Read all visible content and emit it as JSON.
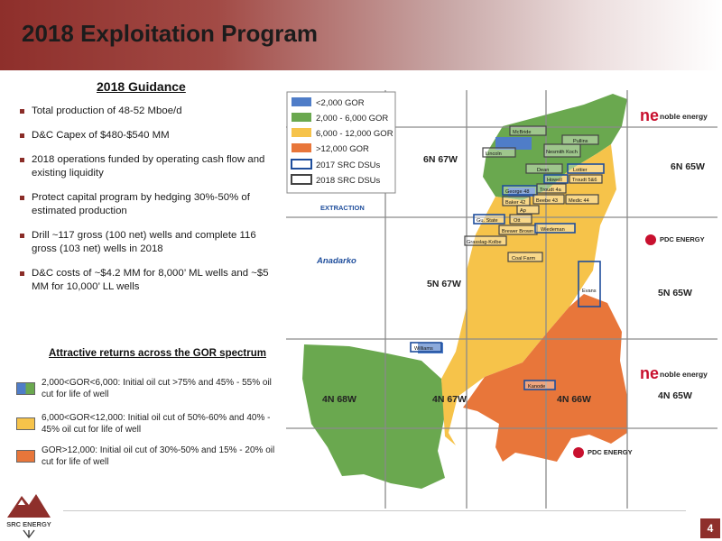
{
  "header": {
    "title": "2018 Exploitation Program"
  },
  "guidance": {
    "heading": "2018 Guidance",
    "bullets": [
      "Total production of 48-52 Mboe/d",
      "D&C Capex of $480-$540 MM",
      "2018 operations funded by operating cash flow and existing liquidity",
      "Protect capital program by hedging 30%-50% of estimated production",
      "Drill ~117 gross (100 net) wells and complete 116 gross (103 net) wells in 2018",
      "D&C costs of ~$4.2 MM for 8,000’ ML wells and ~$5 MM for 10,000’ LL wells"
    ]
  },
  "returns": {
    "heading": "Attractive returns across the GOR spectrum",
    "items": [
      {
        "text": "2,000<GOR<6,000: Initial oil cut >75% and 45% - 55% oil cut for life of well",
        "colors": [
          "#4f7dc8",
          "#6aa84f"
        ]
      },
      {
        "text": "6,000<GOR<12,000: Initial oil cut of 50%-60% and 40% - 45% oil cut for life of well",
        "colors": [
          "#f6c34a"
        ]
      },
      {
        "text": "GOR>12,000: Initial oil cut of 30%-50% and 15% - 20% oil cut for life of well",
        "colors": [
          "#e8763a"
        ]
      }
    ]
  },
  "map": {
    "legend": [
      {
        "label": "<2,000 GOR",
        "color": "#4f7dc8",
        "kind": "fill"
      },
      {
        "label": "2,000 - 6,000 GOR",
        "color": "#6aa84f",
        "kind": "fill"
      },
      {
        "label": "6,000 - 12,000 GOR",
        "color": "#f6c34a",
        "kind": "fill"
      },
      {
        "label": ">12,000 GOR",
        "color": "#e8763a",
        "kind": "fill"
      },
      {
        "label": "2017 SRC DSUs",
        "color": "#1f4e9c",
        "kind": "outline"
      },
      {
        "label": "2018 SRC DSUs",
        "color": "#444444",
        "kind": "outline"
      }
    ],
    "townships": [
      "6N 67W",
      "6N 65W",
      "5N 67W",
      "5N 65W",
      "4N 68W",
      "4N 67W",
      "4N 66W",
      "4N 65W"
    ],
    "operators": {
      "noble1": "noble energy",
      "noble2": "noble energy",
      "pdc1": "PDC ENERGY",
      "pdc2": "PDC ENERGY",
      "extraction": "EXTRACTION",
      "anadarko": "Anadarko"
    },
    "dsus": [
      "McBride",
      "Lincoln",
      "Nesmith Koch",
      "Pullins",
      "Dean",
      "Lottier",
      "Howell",
      "Troudt 5&6",
      "George 48",
      "Troudt 4a",
      "Baker 42",
      "Beebe 43",
      "Medic 44",
      "Ap",
      "Gu. State",
      "Ott",
      "Brewer Brown",
      "Wiedeman",
      "Grasslag-Kolbe",
      "Coal Farm",
      "Evans",
      "Williams",
      "Kanode"
    ]
  },
  "footer": {
    "logo_text": "SRC ENERGY",
    "page": "4"
  }
}
